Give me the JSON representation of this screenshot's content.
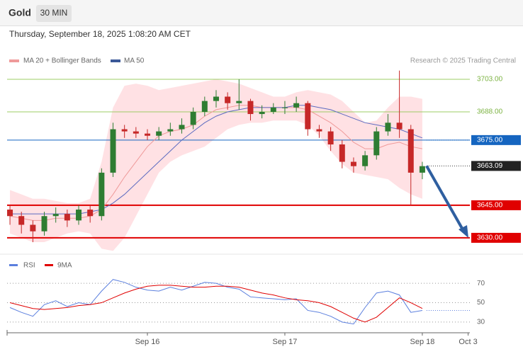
{
  "header": {
    "symbol": "Gold",
    "interval": "30 MIN",
    "datetime": "Thursday, September 18, 2025 1:08:20 AM CET"
  },
  "chart_data": {
    "type": "candlestick",
    "legend": [
      "MA 20 + Bollinger Bands",
      "MA 50"
    ],
    "source": "Research © 2025 Trading Central",
    "x": [
      0,
      2,
      4,
      6,
      8,
      10,
      12,
      14,
      16,
      18,
      20,
      22,
      24,
      26,
      28,
      30,
      32,
      34,
      36,
      38,
      40,
      42,
      44,
      46,
      48,
      50,
      52,
      54,
      56,
      58,
      60,
      62,
      64,
      66,
      68,
      70,
      72
    ],
    "xlim": [
      -0.5,
      80.3
    ],
    "xticks": [
      {
        "value": 24,
        "label": "Sep 16"
      },
      {
        "value": 48,
        "label": "Sep 17"
      },
      {
        "value": 72,
        "label": "Sep 18"
      },
      {
        "value": 80,
        "label": "Oct 3"
      }
    ],
    "ylim": [
      3622.8,
      3706.9
    ],
    "open": [
      3643,
      3640,
      3636,
      3633,
      3640,
      3641,
      3638,
      3643,
      3640,
      3660,
      3680,
      3679,
      3678,
      3677,
      3679,
      3680,
      3682,
      3688,
      3693,
      3695,
      3692,
      3693,
      3687,
      3688,
      3690,
      3690,
      3692,
      3680,
      3679,
      3673,
      3665,
      3663,
      3668,
      3679,
      3683,
      3680,
      3660
    ],
    "high": [
      3645,
      3642,
      3638,
      3642,
      3644,
      3643,
      3645,
      3645,
      3662,
      3683,
      3682,
      3681,
      3680,
      3681,
      3683,
      3685,
      3690,
      3695,
      3698,
      3697,
      3703,
      3694,
      3691,
      3692,
      3693,
      3695,
      3693,
      3682,
      3681,
      3675,
      3667,
      3670,
      3681,
      3687,
      3707,
      3682,
      3665
    ],
    "low": [
      3636,
      3632,
      3628,
      3631,
      3637,
      3635,
      3636,
      3637,
      3638,
      3658,
      3676,
      3676,
      3675,
      3675,
      3677,
      3678,
      3680,
      3686,
      3690,
      3689,
      3689,
      3684,
      3685,
      3687,
      3687,
      3688,
      3677,
      3676,
      3670,
      3662,
      3660,
      3661,
      3666,
      3677,
      3676,
      3645,
      3657
    ],
    "close": [
      3640,
      3636,
      3633,
      3640,
      3641,
      3638,
      3643,
      3640,
      3660,
      3680,
      3679,
      3678,
      3677,
      3679,
      3680,
      3682,
      3688,
      3693,
      3695,
      3692,
      3693,
      3687,
      3688,
      3690,
      3690,
      3692,
      3680,
      3679,
      3673,
      3665,
      3663,
      3668,
      3679,
      3683,
      3680,
      3660,
      3663
    ],
    "up_color": "#2e7d32",
    "down_color": "#c62828",
    "ma20": {
      "color": "#ef9a9a",
      "values": [
        3640,
        3639,
        3638,
        3638,
        3639,
        3639,
        3639,
        3640,
        3643,
        3650,
        3658,
        3665,
        3672,
        3677,
        3679,
        3680,
        3682,
        3686,
        3689,
        3690,
        3691,
        3691,
        3690,
        3690,
        3690,
        3690,
        3689,
        3686,
        3683,
        3679,
        3674,
        3671,
        3671,
        3673,
        3674,
        3672,
        3671
      ]
    },
    "ma50": {
      "color": "#5c6bc0",
      "values": [
        3641,
        3641,
        3641,
        3641,
        3641,
        3641,
        3641,
        3642,
        3643,
        3646,
        3650,
        3655,
        3660,
        3665,
        3670,
        3675,
        3679,
        3683,
        3686,
        3688,
        3689,
        3690,
        3690,
        3690,
        3690,
        3691,
        3691,
        3690,
        3689,
        3687,
        3685,
        3683,
        3682,
        3681,
        3680,
        3678,
        3676
      ]
    },
    "bollinger": {
      "color": "#ffcdd2",
      "upper": [
        3652,
        3650,
        3648,
        3648,
        3647,
        3646,
        3646,
        3648,
        3665,
        3690,
        3700,
        3701,
        3700,
        3698,
        3699,
        3700,
        3701,
        3702,
        3703,
        3702,
        3701,
        3699,
        3697,
        3695,
        3695,
        3697,
        3698,
        3697,
        3696,
        3693,
        3688,
        3683,
        3684,
        3690,
        3695,
        3695,
        3694
      ],
      "lower": [
        3632,
        3630,
        3628,
        3628,
        3630,
        3632,
        3633,
        3632,
        3625,
        3624,
        3630,
        3640,
        3650,
        3660,
        3665,
        3668,
        3670,
        3672,
        3676,
        3680,
        3682,
        3683,
        3683,
        3684,
        3684,
        3684,
        3682,
        3677,
        3670,
        3664,
        3660,
        3659,
        3658,
        3657,
        3653,
        3650,
        3648
      ]
    },
    "levels": {
      "values": [
        3703,
        3688,
        3675,
        3645,
        3630
      ],
      "value_labels": [
        "3703.00",
        "3688.00",
        "3675.00",
        "3645.00",
        "3630.00"
      ],
      "colors": [
        "#9ccc65",
        "#9ccc65",
        "#1565c0",
        "#e00000",
        "#e00000"
      ]
    },
    "last_price": {
      "value": 3663.09,
      "label": "3663.09"
    },
    "rsi": {
      "ylim": [
        22.6,
        81.1
      ],
      "yticks": [
        70,
        50,
        30
      ],
      "series": [
        {
          "name": "RSI",
          "color": "#5b7fde",
          "values": [
            45,
            40,
            36,
            48,
            52,
            46,
            50,
            48,
            62,
            74,
            71,
            66,
            63,
            62,
            66,
            63,
            67,
            71,
            70,
            66,
            64,
            56,
            55,
            54,
            53,
            54,
            42,
            40,
            36,
            30,
            28,
            45,
            60,
            62,
            58,
            40,
            42
          ]
        },
        {
          "name": "9MA",
          "color": "#e00000",
          "values": [
            50,
            47,
            44,
            43,
            44,
            45,
            47,
            48,
            50,
            55,
            60,
            64,
            67,
            68,
            68,
            67,
            66,
            66,
            67,
            67,
            66,
            63,
            60,
            58,
            55,
            53,
            52,
            50,
            46,
            40,
            34,
            30,
            35,
            45,
            55,
            50,
            44
          ]
        }
      ]
    }
  }
}
